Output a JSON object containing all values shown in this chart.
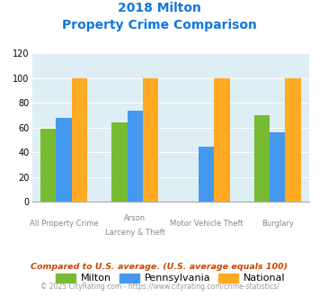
{
  "title_line1": "2018 Milton",
  "title_line2": "Property Crime Comparison",
  "cat_labels_row1": [
    "All Property Crime",
    "Arson",
    "Motor Vehicle Theft",
    "Burglary"
  ],
  "cat_labels_row2": [
    "",
    "Larceny & Theft",
    "",
    ""
  ],
  "milton_values": [
    59,
    64,
    0,
    70
  ],
  "pennsylvania_values": [
    68,
    74,
    45,
    56
  ],
  "national_values": [
    100,
    100,
    100,
    100
  ],
  "milton_color": "#77bb33",
  "pennsylvania_color": "#4499ee",
  "national_color": "#ffaa22",
  "background_color": "#ddeef5",
  "ylim": [
    0,
    120
  ],
  "yticks": [
    0,
    20,
    40,
    60,
    80,
    100,
    120
  ],
  "legend_labels": [
    "Milton",
    "Pennsylvania",
    "National"
  ],
  "footnote1": "Compared to U.S. average. (U.S. average equals 100)",
  "footnote2": "© 2025 CityRating.com - https://www.cityrating.com/crime-statistics/",
  "title_color": "#1177dd",
  "footnote1_color": "#cc4400",
  "footnote2_color": "#999999",
  "label_color": "#888888"
}
